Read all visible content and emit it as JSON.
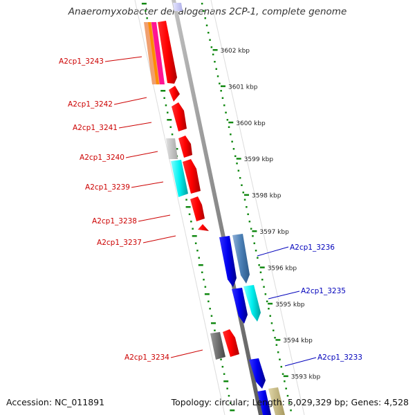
{
  "title": "Anaeromyxobacter dehalogenans 2CP-1, complete genome",
  "footer": {
    "accession": "Accession: NC_011891",
    "summary": "Topology: circular; Length: 5,029,329 bp; Genes: 4,528"
  },
  "colors": {
    "forward_label": "#cc0000",
    "reverse_label": "#0000bb",
    "tick_green": "#118811",
    "backbone": "#8c8c8c"
  },
  "scale_ticks": [
    {
      "kbp": 3602,
      "label": "3602 kbp"
    },
    {
      "kbp": 3601,
      "label": "3601 kbp"
    },
    {
      "kbp": 3600,
      "label": "3600 kbp"
    },
    {
      "kbp": 3599,
      "label": "3599 kbp"
    },
    {
      "kbp": 3598,
      "label": "3598 kbp"
    },
    {
      "kbp": 3597,
      "label": "3597 kbp"
    },
    {
      "kbp": 3596,
      "label": "3596 kbp"
    },
    {
      "kbp": 3595,
      "label": "3595 kbp"
    },
    {
      "kbp": 3594,
      "label": "3594 kbp"
    },
    {
      "kbp": 3593,
      "label": "3593 kbp"
    }
  ],
  "gene_labels": [
    {
      "name": "A2cp1_3243",
      "strand": "forward"
    },
    {
      "name": "A2cp1_3242",
      "strand": "forward"
    },
    {
      "name": "A2cp1_3241",
      "strand": "forward"
    },
    {
      "name": "A2cp1_3240",
      "strand": "forward"
    },
    {
      "name": "A2cp1_3239",
      "strand": "forward"
    },
    {
      "name": "A2cp1_3238",
      "strand": "forward"
    },
    {
      "name": "A2cp1_3237",
      "strand": "forward"
    },
    {
      "name": "A2cp1_3234",
      "strand": "forward"
    },
    {
      "name": "A2cp1_3236",
      "strand": "reverse"
    },
    {
      "name": "A2cp1_3235",
      "strand": "reverse"
    },
    {
      "name": "A2cp1_3233",
      "strand": "reverse"
    }
  ]
}
